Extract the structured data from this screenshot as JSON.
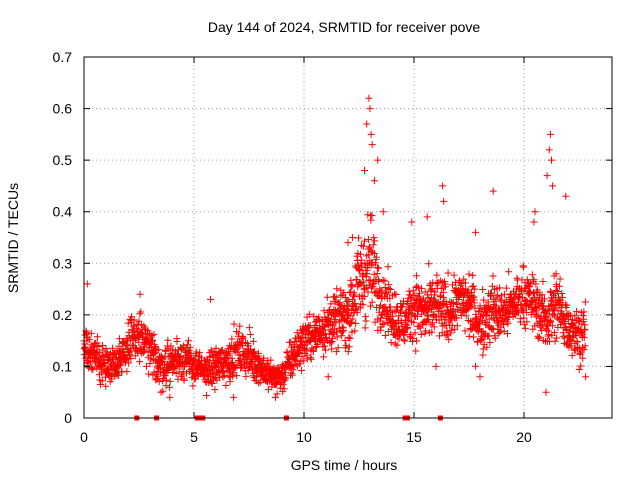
{
  "chart_data": {
    "type": "scatter",
    "title": "Day 144 of 2024, SRMTID for receiver pove",
    "xlabel": "GPS time / hours",
    "ylabel": "SRMTID / TECUs",
    "xlim": [
      0,
      24
    ],
    "ylim": [
      0,
      0.7
    ],
    "grid": true,
    "marker": "+",
    "color": "#ff0000",
    "x_ticks": [
      0,
      5,
      10,
      15,
      20
    ],
    "y_ticks": [
      0,
      0.1,
      0.2,
      0.3,
      0.4,
      0.5,
      0.6,
      0.7
    ],
    "x_tick_labels": [
      "0",
      "5",
      "10",
      "15",
      "20"
    ],
    "y_tick_labels": [
      "0",
      "0.1",
      "0.2",
      "0.3",
      "0.4",
      "0.5",
      "0.6",
      "0.7"
    ],
    "envelope_hours": [
      0,
      0.5,
      1.0,
      1.5,
      2.0,
      2.5,
      3.0,
      3.5,
      4.0,
      4.5,
      5.0,
      5.5,
      6.0,
      6.5,
      7.0,
      7.5,
      8.0,
      8.5,
      9.0,
      9.5,
      10.0,
      10.5,
      11.0,
      11.5,
      12.0,
      12.5,
      13.0,
      13.5,
      14.0,
      14.5,
      15.0,
      15.5,
      16.0,
      16.5,
      17.0,
      17.5,
      18.0,
      18.5,
      19.0,
      19.5,
      20.0,
      20.5,
      21.0,
      21.5,
      22.0,
      22.5,
      22.8
    ],
    "envelope_median": [
      0.13,
      0.12,
      0.1,
      0.11,
      0.14,
      0.16,
      0.13,
      0.1,
      0.11,
      0.12,
      0.1,
      0.09,
      0.1,
      0.11,
      0.13,
      0.12,
      0.1,
      0.08,
      0.08,
      0.12,
      0.15,
      0.16,
      0.18,
      0.19,
      0.2,
      0.26,
      0.3,
      0.24,
      0.2,
      0.18,
      0.22,
      0.2,
      0.22,
      0.2,
      0.23,
      0.22,
      0.18,
      0.21,
      0.2,
      0.22,
      0.24,
      0.22,
      0.19,
      0.22,
      0.18,
      0.16,
      0.17
    ],
    "envelope_spread": [
      0.04,
      0.04,
      0.03,
      0.03,
      0.05,
      0.05,
      0.04,
      0.04,
      0.04,
      0.04,
      0.03,
      0.03,
      0.04,
      0.04,
      0.04,
      0.04,
      0.03,
      0.03,
      0.03,
      0.04,
      0.04,
      0.04,
      0.05,
      0.05,
      0.06,
      0.09,
      0.1,
      0.06,
      0.05,
      0.05,
      0.06,
      0.06,
      0.06,
      0.06,
      0.05,
      0.06,
      0.06,
      0.06,
      0.05,
      0.05,
      0.05,
      0.05,
      0.06,
      0.07,
      0.05,
      0.05,
      0.05
    ],
    "point_spacing_hours": 0.01,
    "peak_points": [
      {
        "x": 12.95,
        "y": 0.62
      },
      {
        "x": 13.0,
        "y": 0.6
      },
      {
        "x": 12.85,
        "y": 0.57
      },
      {
        "x": 13.05,
        "y": 0.55
      },
      {
        "x": 13.1,
        "y": 0.53
      },
      {
        "x": 13.35,
        "y": 0.5
      },
      {
        "x": 12.75,
        "y": 0.48
      },
      {
        "x": 13.2,
        "y": 0.46
      },
      {
        "x": 21.2,
        "y": 0.55
      },
      {
        "x": 21.15,
        "y": 0.52
      },
      {
        "x": 21.25,
        "y": 0.5
      },
      {
        "x": 21.05,
        "y": 0.47
      },
      {
        "x": 21.3,
        "y": 0.45
      },
      {
        "x": 21.9,
        "y": 0.43
      },
      {
        "x": 18.6,
        "y": 0.44
      },
      {
        "x": 16.3,
        "y": 0.45
      },
      {
        "x": 16.35,
        "y": 0.42
      },
      {
        "x": 15.6,
        "y": 0.39
      },
      {
        "x": 14.9,
        "y": 0.38
      },
      {
        "x": 12.2,
        "y": 0.35
      },
      {
        "x": 20.5,
        "y": 0.4
      },
      {
        "x": 20.45,
        "y": 0.38
      },
      {
        "x": 17.8,
        "y": 0.36
      },
      {
        "x": 5.75,
        "y": 0.23
      },
      {
        "x": 2.55,
        "y": 0.24
      },
      {
        "x": 0.15,
        "y": 0.26
      },
      {
        "x": 12.0,
        "y": 0.34
      },
      {
        "x": 13.6,
        "y": 0.4
      }
    ],
    "low_points": [
      {
        "x": 21.0,
        "y": 0.05
      },
      {
        "x": 18.0,
        "y": 0.08
      },
      {
        "x": 22.8,
        "y": 0.08
      },
      {
        "x": 3.9,
        "y": 0.04
      },
      {
        "x": 8.7,
        "y": 0.04
      },
      {
        "x": 6.8,
        "y": 0.04
      },
      {
        "x": 3.5,
        "y": 0.05
      },
      {
        "x": 11.1,
        "y": 0.08
      },
      {
        "x": 16.0,
        "y": 0.1
      }
    ],
    "zero_markers_hours": [
      2.4,
      3.3,
      5.15,
      5.3,
      5.4,
      9.2,
      14.6,
      14.7,
      16.2
    ]
  }
}
